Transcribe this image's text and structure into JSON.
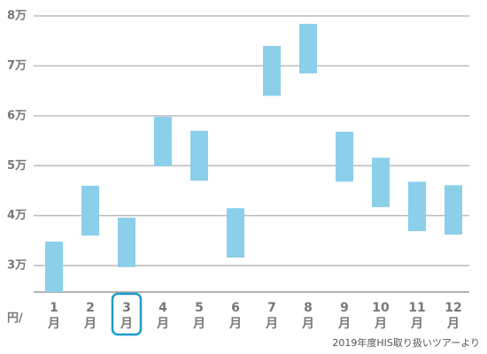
{
  "chart_data": {
    "type": "range-bar",
    "categories": [
      "1月",
      "2月",
      "3月",
      "4月",
      "5月",
      "6月",
      "7月",
      "8月",
      "9月",
      "10月",
      "11月",
      "12月"
    ],
    "low": [
      24700,
      36000,
      29700,
      49900,
      47000,
      31600,
      64000,
      68500,
      46800,
      41700,
      36900,
      36200
    ],
    "high": [
      34800,
      46000,
      39600,
      59800,
      57000,
      41500,
      74000,
      78400,
      56800,
      51600,
      46800,
      46100
    ],
    "color": "#8ccfea",
    "ylim": [
      24700,
      80000
    ],
    "yticks": [
      {
        "value": 30000,
        "label": "3万"
      },
      {
        "value": 40000,
        "label": "4万"
      },
      {
        "value": 50000,
        "label": "5万"
      },
      {
        "value": 60000,
        "label": "6万"
      },
      {
        "value": 70000,
        "label": "7万"
      },
      {
        "value": 80000,
        "label": "8万"
      }
    ],
    "grid": true,
    "highlighted": 2,
    "unit_label": "円/",
    "footnote": "2019年度HIS取り扱いツアーより"
  }
}
